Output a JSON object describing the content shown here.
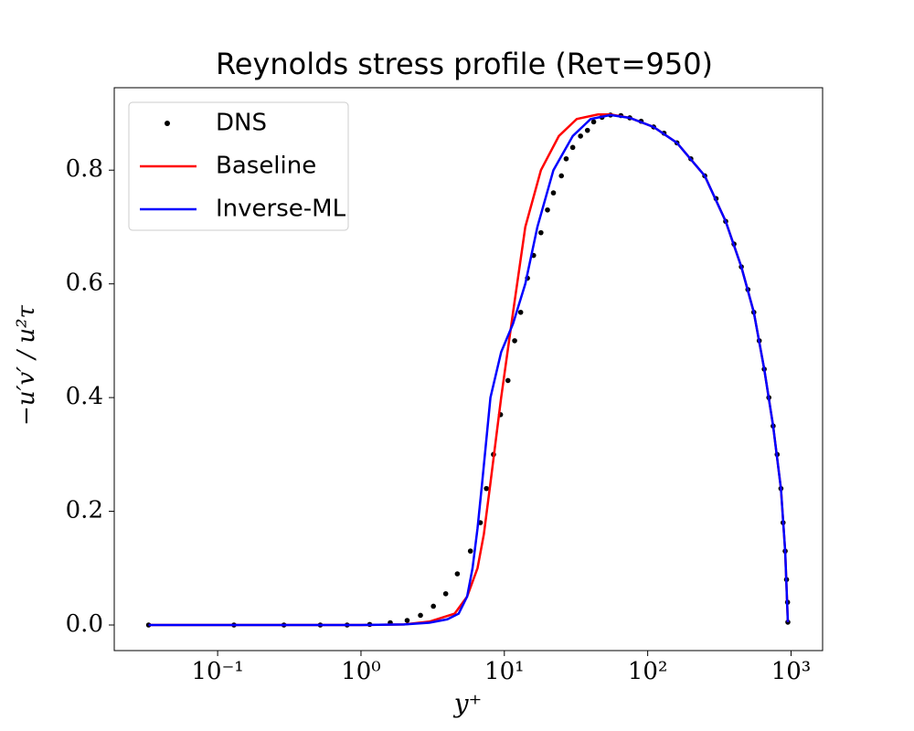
{
  "chart_data": {
    "type": "line",
    "title": "Reynolds stress profile (Reτ=950)",
    "xlabel": "y⁺",
    "ylabel": "−u′v′ / u²τ",
    "xscale": "log",
    "xlim": [
      0.019,
      1660
    ],
    "ylim": [
      -0.045,
      0.945
    ],
    "xticks": [
      {
        "value": 0.1,
        "label": "10⁻¹"
      },
      {
        "value": 1,
        "label": "10⁰"
      },
      {
        "value": 10,
        "label": "10¹"
      },
      {
        "value": 100,
        "label": "10²"
      },
      {
        "value": 1000,
        "label": "10³"
      }
    ],
    "yticks": [
      {
        "value": 0,
        "label": "0.0"
      },
      0.2,
      0.4,
      0.6,
      0.8
    ],
    "grid": false,
    "legend": "upper left",
    "series": [
      {
        "name": "DNS",
        "color": "#000000",
        "mode": "markers",
        "x": [
          0.033,
          0.13,
          0.29,
          0.52,
          0.8,
          1.15,
          1.6,
          2.1,
          2.6,
          3.2,
          3.9,
          4.7,
          5.8,
          6.8,
          7.5,
          8.4,
          9.4,
          10.6,
          11.8,
          13,
          14.5,
          16,
          18,
          20,
          22,
          25,
          27,
          30,
          34,
          38,
          42,
          48,
          55,
          65,
          75,
          90,
          110,
          130,
          160,
          200,
          250,
          300,
          350,
          400,
          450,
          500,
          550,
          600,
          650,
          700,
          750,
          800,
          850,
          880,
          910,
          930,
          945,
          950
        ],
        "values": [
          0,
          0,
          0,
          0,
          0,
          0.001,
          0.004,
          0.008,
          0.017,
          0.033,
          0.055,
          0.09,
          0.13,
          0.18,
          0.24,
          0.3,
          0.37,
          0.43,
          0.5,
          0.55,
          0.61,
          0.65,
          0.69,
          0.73,
          0.76,
          0.79,
          0.82,
          0.84,
          0.86,
          0.87,
          0.885,
          0.893,
          0.897,
          0.896,
          0.892,
          0.886,
          0.876,
          0.865,
          0.848,
          0.82,
          0.79,
          0.75,
          0.71,
          0.67,
          0.63,
          0.59,
          0.55,
          0.5,
          0.45,
          0.4,
          0.35,
          0.3,
          0.24,
          0.18,
          0.13,
          0.08,
          0.04,
          0.005
        ]
      },
      {
        "name": "Baseline",
        "color": "#ff0000",
        "mode": "lines",
        "x": [
          0.033,
          0.3,
          1,
          2,
          3,
          4.5,
          5.5,
          6.5,
          7.2,
          8,
          9.5,
          11.5,
          14,
          18,
          24,
          32,
          45,
          55,
          75,
          110,
          160,
          250,
          350,
          450,
          550,
          650,
          750,
          850,
          910,
          950
        ],
        "values": [
          0,
          0,
          0,
          0.001,
          0.006,
          0.02,
          0.05,
          0.1,
          0.16,
          0.25,
          0.4,
          0.55,
          0.7,
          0.8,
          0.86,
          0.89,
          0.898,
          0.898,
          0.892,
          0.876,
          0.848,
          0.79,
          0.71,
          0.63,
          0.55,
          0.45,
          0.35,
          0.24,
          0.13,
          0.005
        ]
      },
      {
        "name": "Inverse-ML",
        "color": "#0000ff",
        "mode": "lines",
        "x": [
          0.033,
          0.3,
          1,
          2,
          3,
          4,
          4.8,
          5.5,
          6,
          6.5,
          7,
          8,
          9.5,
          11.5,
          14,
          17,
          22,
          30,
          40,
          55,
          75,
          110,
          160,
          250,
          350,
          450,
          550,
          650,
          750,
          850,
          910,
          950
        ],
        "values": [
          0,
          0,
          0,
          0.001,
          0.004,
          0.01,
          0.02,
          0.05,
          0.1,
          0.17,
          0.25,
          0.4,
          0.48,
          0.53,
          0.6,
          0.7,
          0.8,
          0.86,
          0.89,
          0.897,
          0.892,
          0.876,
          0.848,
          0.79,
          0.71,
          0.63,
          0.55,
          0.45,
          0.35,
          0.24,
          0.13,
          0.005
        ]
      }
    ]
  }
}
